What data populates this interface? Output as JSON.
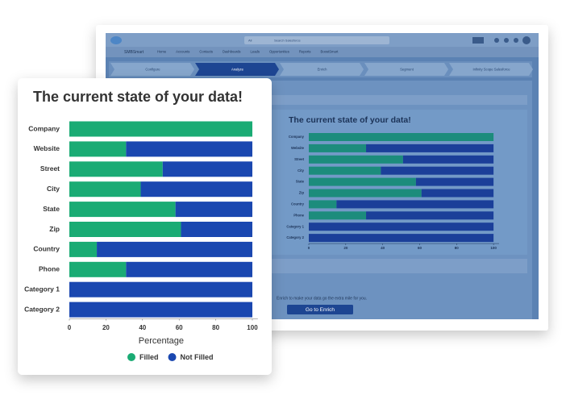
{
  "chart_data": {
    "type": "bar",
    "orientation": "horizontal",
    "stacked": true,
    "title": "The current state of your data!",
    "categories": [
      "Company",
      "Website",
      "Street",
      "City",
      "State",
      "Zip",
      "Country",
      "Phone",
      "Category 1",
      "Category 2"
    ],
    "series": [
      {
        "name": "Filled",
        "color": "#1aab74",
        "values": [
          100,
          31,
          51,
          39,
          58,
          61,
          15,
          31,
          0,
          0
        ]
      },
      {
        "name": "Not Filled",
        "color": "#1a47b0",
        "values": [
          0,
          69,
          49,
          61,
          42,
          39,
          85,
          69,
          100,
          100
        ]
      }
    ],
    "xlabel": "Percentage",
    "xlim": [
      0,
      103
    ],
    "xticks": [
      0,
      20,
      40,
      60,
      80,
      100
    ],
    "legend": "bottom"
  },
  "screenshot": {
    "app_name": "SMBSmart",
    "search_scope": "All",
    "search_placeholder": "Search Salesforce",
    "nav": [
      "Home",
      "Accounts",
      "Contacts",
      "Dashboards",
      "Leads",
      "Opportunities",
      "Reports",
      "BoostSmart"
    ],
    "steps": [
      "Configure",
      "Analyze",
      "Enrich",
      "Segment",
      "Infinity Scope Salesforce"
    ],
    "footer_text": "Enrich to make your data go the extra mile for you.",
    "button": "Go to Enrich"
  }
}
